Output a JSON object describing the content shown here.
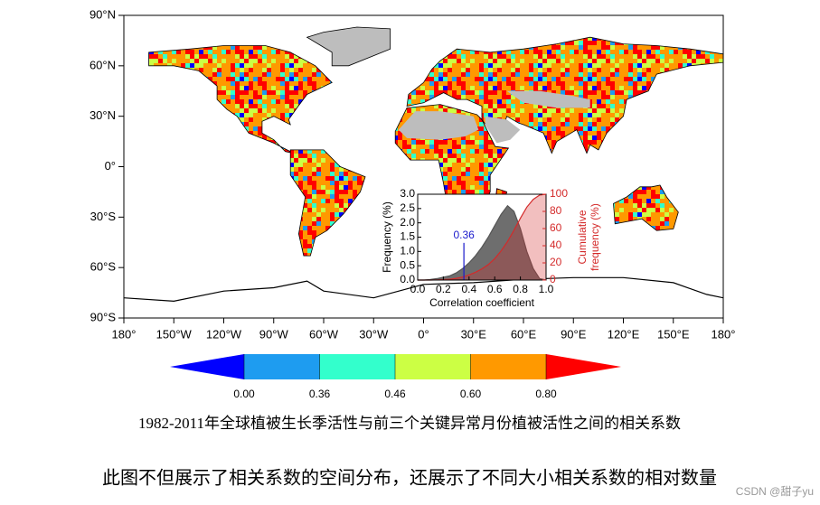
{
  "map": {
    "lat_labels": [
      "90°N",
      "60°N",
      "30°N",
      "0°",
      "30°S",
      "60°S",
      "90°S"
    ],
    "lon_labels": [
      "180°",
      "150°W",
      "120°W",
      "90°W",
      "60°W",
      "30°W",
      "0°",
      "30°E",
      "60°E",
      "90°E",
      "120°E",
      "150°E",
      "180°"
    ]
  },
  "colorbar": {
    "colors": [
      "#0000ff",
      "#1e9cf0",
      "#33ffcc",
      "#ccff44",
      "#ff9900",
      "#ff0000"
    ],
    "ticks": [
      {
        "value": 0,
        "label": "0.00"
      },
      0.36,
      0.46,
      {
        "value": 0.6,
        "label": "0.60"
      },
      {
        "value": 0.8,
        "label": "0.80"
      }
    ]
  },
  "chart_data": {
    "type": "area",
    "xlabel": "Correlation coefficient",
    "ylabel": "Frequency (%)",
    "y2label": [
      "Cumulative",
      "frequency (%)"
    ],
    "x": [
      0,
      0.05,
      0.1,
      0.15,
      0.2,
      0.25,
      0.3,
      0.35,
      0.4,
      0.45,
      0.5,
      0.55,
      0.6,
      0.65,
      0.7,
      0.75,
      0.8,
      0.85,
      0.9,
      0.95,
      1.0
    ],
    "series": [
      {
        "color": "#555555",
        "values": [
          0,
          0,
          0.02,
          0.05,
          0.1,
          0.15,
          0.25,
          0.4,
          0.6,
          0.85,
          1.15,
          1.5,
          1.9,
          2.3,
          2.6,
          2.4,
          1.8,
          1.0,
          0.4,
          0.05,
          0
        ]
      },
      {
        "color": "#d42a2a",
        "axis": "y2",
        "values": [
          0,
          0,
          0,
          0.2,
          0.5,
          1,
          2,
          3.5,
          6,
          9,
          13,
          18,
          25,
          34,
          45,
          58,
          72,
          85,
          94,
          99,
          100
        ]
      }
    ],
    "xlim": [
      0,
      1
    ],
    "xticks": [
      {
        "value": 0,
        "label": "0.0"
      },
      0.2,
      0.4,
      0.6,
      0.8,
      {
        "value": 1,
        "label": "1.0"
      }
    ],
    "ylim": [
      0,
      3
    ],
    "yticks": [
      {
        "value": 0,
        "label": "0.0"
      },
      0.5,
      {
        "value": 1,
        "label": "1.0"
      },
      1.5,
      {
        "value": 2,
        "label": "2.0"
      },
      2.5,
      {
        "value": 3,
        "label": "3.0"
      }
    ],
    "y2lim": [
      0,
      100
    ],
    "y2ticks": [
      0,
      20,
      40,
      60,
      80,
      100
    ],
    "annotations": [
      {
        "x": 0.36,
        "color": "#1a1acc"
      }
    ]
  },
  "caption": "1982-2011年全球植被生长季活性与前三个关键异常月份植被活性之间的相关系数",
  "text": "此图不但展示了相关系数的空间分布，还展示了不同大小相关系数的相对数量",
  "watermark": "CSDN @甜子yu"
}
